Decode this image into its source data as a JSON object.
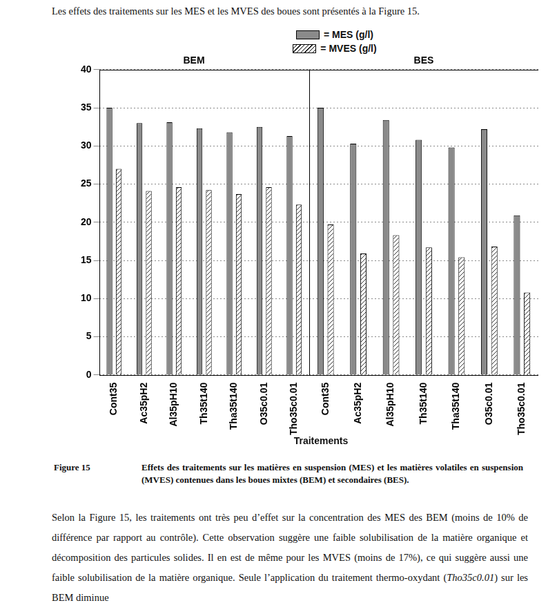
{
  "document": {
    "intro": "Les effets des traitements sur les MES et les MVES des boues sont présentés à la Figure 15.",
    "x_axis_title": "Traitements",
    "figure_label": "Figure 15",
    "caption": "Effets des traitements sur les matières en suspension (MES) et les matières volatiles en suspension (MVES) contenues dans les boues mixtes (BEM) et secondaires (BES).",
    "body": [
      "Selon la Figure 15, les traitements ont très peu d’effet sur la concentration des MES des BEM (moins de 10% de différence par rapport au contrôle). Cette observation suggère une faible solubilisation de la matière organique et décomposition des particules solides. Il en est de même pour les MVES (moins de 17%), ce qui suggère aussi une faible solubilisation de la matière organique. Seule l’application du traitement thermo-oxydant (",
      "Tho35c0.01",
      ") sur les BEM diminue"
    ]
  },
  "chart_data": [
    {
      "type": "bar",
      "title": "BEM",
      "categories": [
        "Cont35",
        "Ac35pH2",
        "Al35pH10",
        "Th35t140",
        "Tha35t140",
        "O35c0.01",
        "Tho35c0.01"
      ],
      "series": [
        {
          "name": "= MES (g/l)",
          "color": "#8a8a8a",
          "values": [
            35,
            33,
            33.1,
            32.3,
            31.8,
            32.5,
            31.3
          ]
        },
        {
          "name": "= MVES (g/l)",
          "color": "#ffffff",
          "values": [
            27,
            24.1,
            24.6,
            24.2,
            23.7,
            24.6,
            22.3
          ]
        }
      ],
      "ylim": [
        0,
        40
      ],
      "yticks": [
        0,
        5,
        10,
        15,
        20,
        25,
        30,
        35,
        40
      ],
      "grid": true,
      "legend": "top"
    },
    {
      "type": "bar",
      "title": "BES",
      "categories": [
        "Cont35",
        "Ac35pH2",
        "Al35pH10",
        "Th35t140",
        "Tha35t140",
        "O35c0.01",
        "Tho35c0.01"
      ],
      "series": [
        {
          "name": "= MES (g/l)",
          "color": "#8a8a8a",
          "values": [
            35,
            30.3,
            33.4,
            30.8,
            29.8,
            32.2,
            20.9
          ]
        },
        {
          "name": "= MVES (g/l)",
          "color": "#ffffff",
          "values": [
            19.7,
            15.9,
            18.3,
            16.7,
            15.4,
            16.8,
            10.8
          ]
        }
      ],
      "ylim": [
        0,
        40
      ],
      "yticks": [
        0,
        5,
        10,
        15,
        20,
        25,
        30,
        35,
        40
      ],
      "grid": true,
      "tick_labels": "x"
    }
  ]
}
